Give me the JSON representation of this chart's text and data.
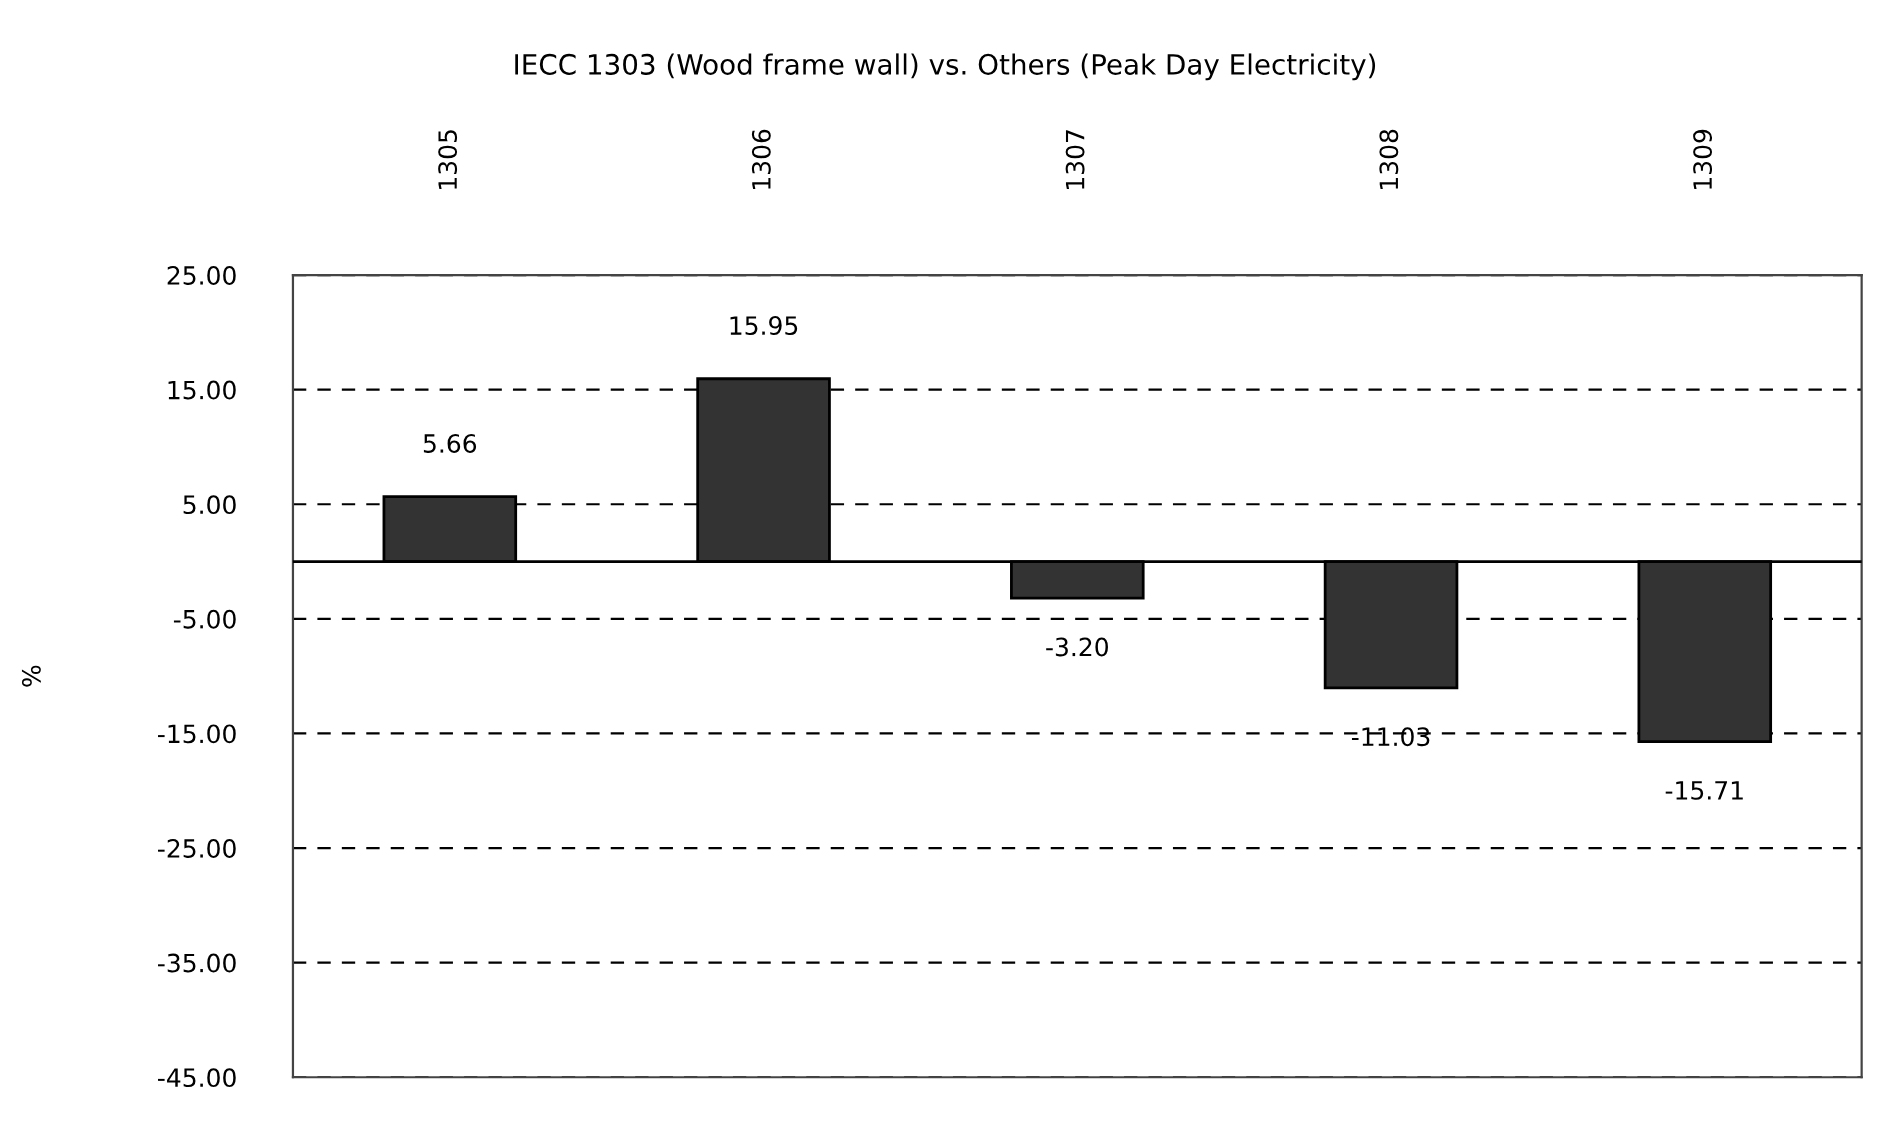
{
  "chart_data": {
    "type": "bar",
    "title": "IECC 1303 (Wood frame wall) vs. Others (Peak Day Electricity)",
    "ylabel": "%",
    "categories": [
      "1305",
      "1306",
      "1307",
      "1308",
      "1309"
    ],
    "values": [
      5.66,
      15.95,
      -3.2,
      -11.03,
      -15.71
    ],
    "value_labels": [
      "5.66",
      "15.95",
      "-3.20",
      "-11.03",
      "-15.71"
    ],
    "color": "#333333",
    "ylim": [
      -45,
      25
    ],
    "yticks": [
      {
        "value": -45,
        "label": "-45.00"
      },
      {
        "value": -35,
        "label": "-35.00"
      },
      {
        "value": -25,
        "label": "-25.00"
      },
      {
        "value": -15,
        "label": "-15.00"
      },
      {
        "value": -5,
        "label": "-5.00"
      },
      {
        "value": 5,
        "label": "5.00"
      },
      {
        "value": 15,
        "label": "15.00"
      },
      {
        "value": 25,
        "label": "25.00"
      }
    ],
    "ref_lines": [
      {
        "axis": "y",
        "value": 0,
        "color": "#000000",
        "line_style": "solid"
      }
    ],
    "grid": "y"
  }
}
